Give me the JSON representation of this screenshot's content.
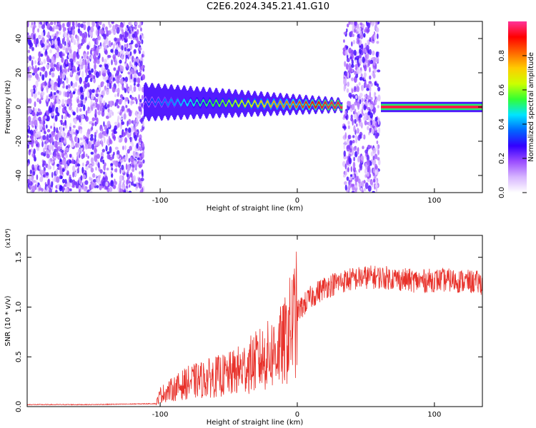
{
  "title": "C2E6.2024.345.21.41.G10",
  "chart_data": [
    {
      "type": "heatmap",
      "xlabel": "Height of straight line (km)",
      "ylabel": "Frequency (Hz)",
      "xlim": [
        -197,
        135
      ],
      "ylim": [
        -50,
        50
      ],
      "xticks": [
        -100,
        0,
        100
      ],
      "yticks": [
        -40,
        -20,
        0,
        20,
        40
      ],
      "colorbar": {
        "label": "Normalized spectral amplitude",
        "range": [
          0,
          1
        ],
        "ticks": [
          "0.0",
          "0.2",
          "0.4",
          "0.6",
          "0.8"
        ],
        "colors": [
          "#ffffff",
          "#d7b5ff",
          "#9b4dff",
          "#3300ff",
          "#0066ff",
          "#00e5ff",
          "#33ff33",
          "#ccff00",
          "#ffcc00",
          "#ff6600",
          "#ff0000",
          "#ff3399"
        ]
      },
      "regions": [
        {
          "kind": "noise",
          "x": [
            -197,
            -112
          ]
        },
        {
          "kind": "signal",
          "x": [
            -112,
            33
          ],
          "freq_start": 3,
          "freq_end": 1
        },
        {
          "kind": "noise",
          "x": [
            34,
            60
          ]
        },
        {
          "kind": "signal",
          "x": [
            61,
            135
          ],
          "freq_start": 0,
          "freq_end": 0
        }
      ]
    },
    {
      "type": "line",
      "xlabel": "Height of straight line (km)",
      "ylabel": "SNR (10 * v/v)",
      "y_multiplier": "(x10⁴)",
      "xlim": [
        -197,
        135
      ],
      "ylim": [
        0,
        1.72
      ],
      "xticks": [
        -100,
        0,
        100
      ],
      "yticks": [
        "0.0",
        "0.5",
        "1.0",
        "1.5"
      ],
      "series": [
        {
          "color": "#e8312a",
          "x": [
            -197,
            -150,
            -103,
            -100,
            -90,
            -80,
            -70,
            -60,
            -50,
            -40,
            -30,
            -20,
            -10,
            0,
            10,
            20,
            30,
            40,
            50,
            60,
            70,
            80,
            90,
            100,
            110,
            120,
            130,
            135
          ],
          "y": [
            0.02,
            0.02,
            0.03,
            0.12,
            0.18,
            0.24,
            0.27,
            0.3,
            0.32,
            0.38,
            0.45,
            0.52,
            0.62,
            0.95,
            1.1,
            1.2,
            1.25,
            1.28,
            1.3,
            1.3,
            1.29,
            1.27,
            1.26,
            1.27,
            1.27,
            1.26,
            1.25,
            1.24
          ]
        }
      ]
    }
  ]
}
